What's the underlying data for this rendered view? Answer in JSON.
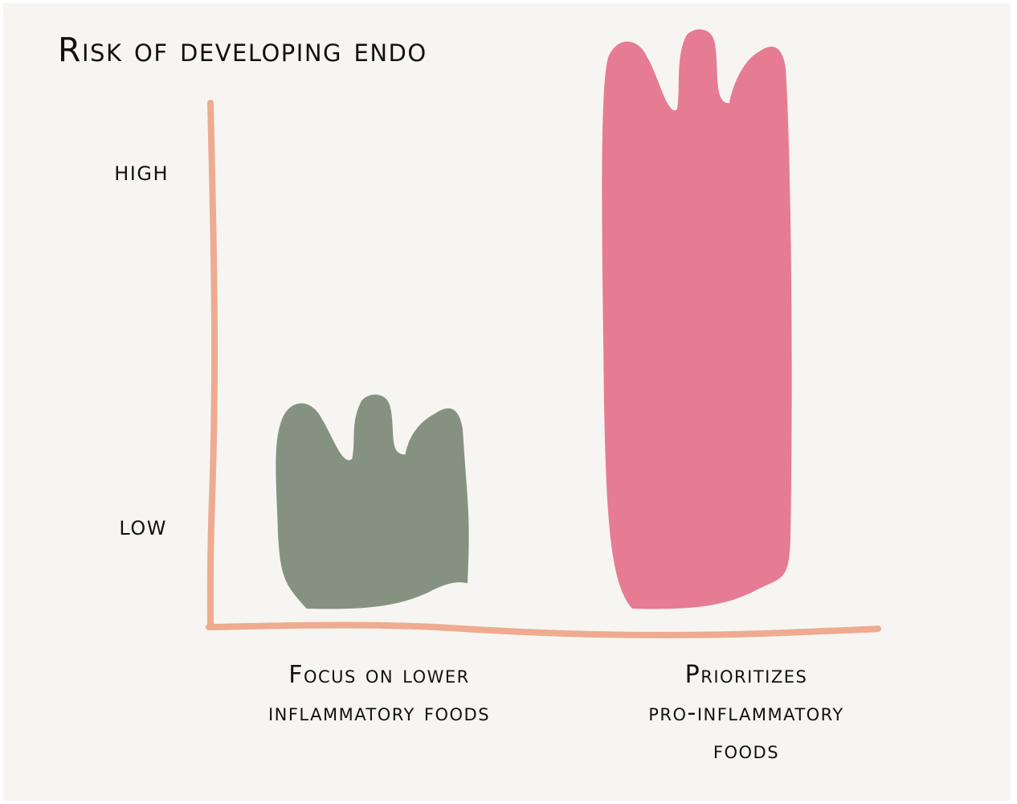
{
  "chart_data": {
    "type": "bar",
    "title": "Risk of developing endo",
    "categories": [
      "Focus on lower\ninflammatory foods",
      "Prioritizes\npro-inflammatory\nfoods"
    ],
    "y_ticks": [
      "HIGH",
      "LOW"
    ],
    "ylim_qualitative": [
      "low",
      "high"
    ],
    "values": [
      0.37,
      1.0
    ],
    "colors": {
      "bars": [
        "#859282",
        "#e57c93"
      ],
      "axis": "#eeab90",
      "background": "#f7f5f1",
      "text": "#111111"
    },
    "grid": false,
    "legend": "none"
  }
}
